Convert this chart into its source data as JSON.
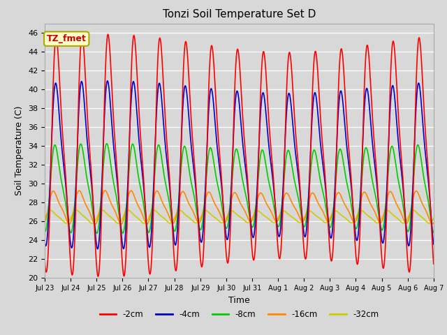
{
  "title": "Tonzi Soil Temperature Set D",
  "xlabel": "Time",
  "ylabel": "Soil Temperature (C)",
  "ylim": [
    20,
    47
  ],
  "bg_color": "#d8d8d8",
  "plot_bg_color": "#d8d8d8",
  "annotation_text": "TZ_fmet",
  "annotation_bg": "#ffffcc",
  "annotation_border": "#aaaa00",
  "annotation_color": "#cc0000",
  "lines": {
    "-2cm": {
      "color": "#ff0000",
      "lw": 1.2
    },
    "-4cm": {
      "color": "#0000cc",
      "lw": 1.2
    },
    "-8cm": {
      "color": "#00cc00",
      "lw": 1.2
    },
    "-16cm": {
      "color": "#ff8800",
      "lw": 1.2
    },
    "-32cm": {
      "color": "#cccc00",
      "lw": 1.2
    }
  },
  "n_days": 15,
  "points_per_day": 144,
  "x_tick_labels": [
    "Jul 23",
    "Jul 24",
    "Jul 25",
    "Jul 26",
    "Jul 27",
    "Jul 28",
    "Jul 29",
    "Jul 30",
    "Jul 31",
    "Aug 1",
    "Aug 2",
    "Aug 3",
    "Aug 4",
    "Aug 5",
    "Aug 6",
    "Aug 7"
  ],
  "params": {
    "-2cm": {
      "mean": 33.0,
      "amp": 10.8,
      "phase": 0.0,
      "phase2": 0.0,
      "amp2": 0.0,
      "mean_drift": 0.0
    },
    "-4cm": {
      "mean": 32.0,
      "amp": 7.5,
      "phase": 0.12,
      "phase2": 0.0,
      "amp2": 0.0,
      "mean_drift": 0.0
    },
    "-8cm": {
      "mean": 29.5,
      "amp": 4.0,
      "phase": 0.3,
      "phase2": 0.0,
      "amp2": 0.0,
      "mean_drift": 0.0
    },
    "-16cm": {
      "mean": 27.5,
      "amp": 1.5,
      "phase": 0.7,
      "phase2": 0.0,
      "amp2": 0.0,
      "mean_drift": 0.0
    },
    "-32cm": {
      "mean": 26.5,
      "amp": 0.6,
      "phase": 1.4,
      "phase2": 0.0,
      "amp2": 0.0,
      "mean_drift": 0.0
    }
  },
  "figsize": [
    6.4,
    4.8
  ],
  "dpi": 100
}
